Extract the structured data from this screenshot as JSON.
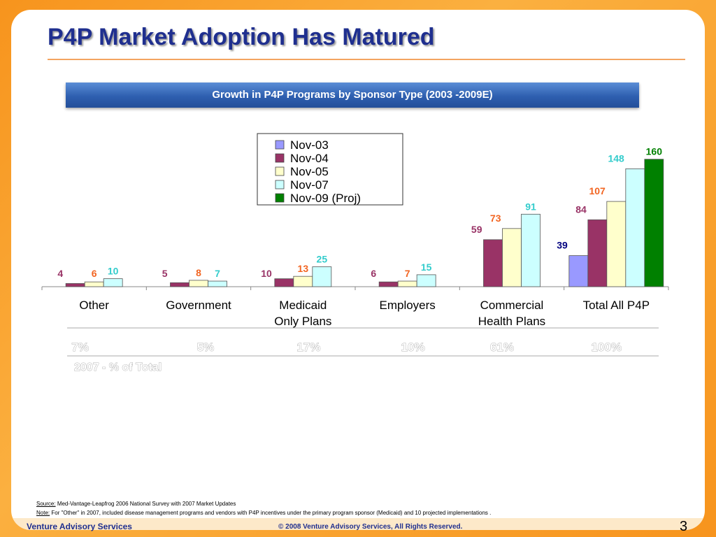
{
  "slide": {
    "title": "P4P Market Adoption Has Matured",
    "banner": "Growth in P4P Programs by Sponsor Type (2003 -2009E)",
    "source_label": "Source:",
    "source_text": "Med-Vantage-Leapfrog 2006 National Survey with 2007 Market Updates",
    "note_label": "Note:",
    "note_text": "For \"Other\" in 2007, included disease management programs and vendors with P4P incentives under the primary program sponsor (Medicaid) and 10 projected implementations .",
    "footer_left": "Venture Advisory Services",
    "footer_center": "© 2008 Venture Advisory Services, All Rights Reserved.",
    "page_number": "3"
  },
  "colors": {
    "Nov-03": "#9999ff",
    "Nov-04": "#993366",
    "Nov-05": "#ffffcc",
    "Nov-07": "#ccffff",
    "Nov-09 (Proj)": "#008000",
    "label_Nov-03": "#000080",
    "label_Nov-04": "#993366",
    "label_Nov-05": "#f26522",
    "label_Nov-07": "#33cccc",
    "label_Nov-09 (Proj)": "#008000"
  },
  "chart_data": {
    "type": "bar",
    "title": "Growth in P4P Programs by Sponsor Type (2003 -2009E)",
    "categories": [
      "Other",
      "Government",
      "Medicaid Only Plans",
      "Employers",
      "Commercial Health Plans",
      "Total All P4P"
    ],
    "category_lines": [
      [
        "Other"
      ],
      [
        "Government"
      ],
      [
        "Medicaid",
        "Only Plans"
      ],
      [
        "Employers"
      ],
      [
        "Commercial",
        "Health Plans"
      ],
      [
        "Total All P4P"
      ]
    ],
    "series": [
      {
        "name": "Nov-03",
        "values": [
          null,
          null,
          null,
          null,
          null,
          39
        ]
      },
      {
        "name": "Nov-04",
        "values": [
          4,
          5,
          10,
          6,
          59,
          84
        ]
      },
      {
        "name": "Nov-05",
        "values": [
          6,
          8,
          13,
          7,
          73,
          107
        ]
      },
      {
        "name": "Nov-07",
        "values": [
          10,
          7,
          25,
          15,
          91,
          148
        ]
      },
      {
        "name": "Nov-09 (Proj)",
        "values": [
          null,
          null,
          null,
          null,
          null,
          160
        ]
      }
    ],
    "ylim": [
      0,
      165
    ],
    "legend_position": "top-center",
    "share_2007": [
      "7%",
      "5%",
      "17%",
      "10%",
      "61%",
      "100%"
    ],
    "share_label": "2007 - % of Total"
  }
}
